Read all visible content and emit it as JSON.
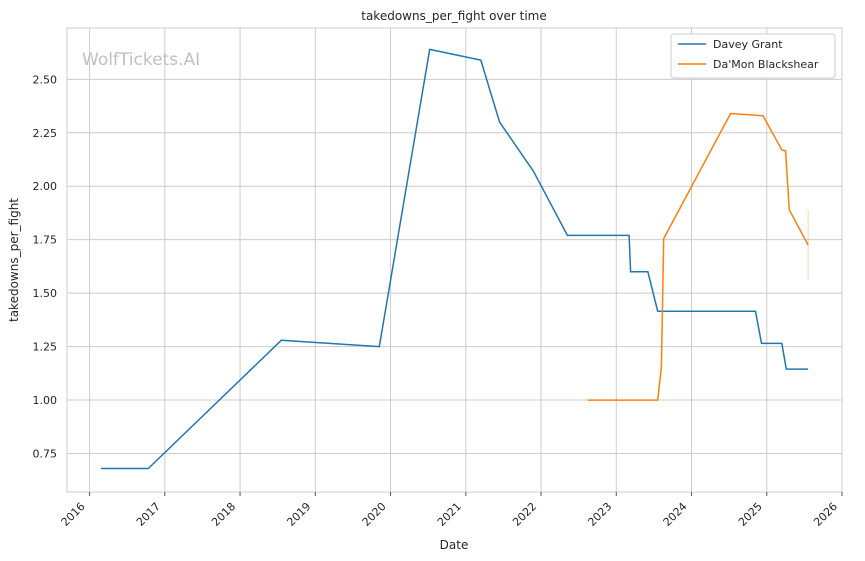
{
  "chart_data": {
    "type": "line",
    "title": "takedowns_per_fight over time",
    "xlabel": "Date",
    "ylabel": "takedowns_per_fight",
    "watermark": "WolfTickets.AI",
    "xlim": [
      2015.7,
      2026.0
    ],
    "ylim": [
      0.57,
      2.74
    ],
    "x_ticks": [
      2016,
      2017,
      2018,
      2019,
      2020,
      2021,
      2022,
      2023,
      2024,
      2025,
      2026
    ],
    "y_ticks": [
      0.75,
      1.0,
      1.25,
      1.5,
      1.75,
      2.0,
      2.25,
      2.5
    ],
    "y_tick_labels": [
      "0.75",
      "1.00",
      "1.25",
      "1.50",
      "1.75",
      "2.00",
      "2.25",
      "2.50"
    ],
    "grid": true,
    "legend_position": "top-right",
    "series": [
      {
        "name": "Davey Grant",
        "color": "#1f77b4",
        "points": [
          [
            2016.15,
            0.68
          ],
          [
            2016.78,
            0.68
          ],
          [
            2018.55,
            1.28
          ],
          [
            2019.85,
            1.25
          ],
          [
            2020.52,
            2.64
          ],
          [
            2021.2,
            2.59
          ],
          [
            2021.45,
            2.3
          ],
          [
            2021.9,
            2.07
          ],
          [
            2022.35,
            1.77
          ],
          [
            2023.17,
            1.77
          ],
          [
            2023.19,
            1.6
          ],
          [
            2023.42,
            1.6
          ],
          [
            2023.55,
            1.415
          ],
          [
            2024.85,
            1.415
          ],
          [
            2024.93,
            1.265
          ],
          [
            2025.2,
            1.265
          ],
          [
            2025.26,
            1.145
          ],
          [
            2025.55,
            1.145
          ]
        ]
      },
      {
        "name": "Da'Mon Blackshear",
        "color": "#ff7f0e",
        "points": [
          [
            2022.62,
            1.0
          ],
          [
            2023.55,
            1.0
          ],
          [
            2023.6,
            1.155
          ],
          [
            2023.63,
            1.755
          ],
          [
            2024.52,
            2.34
          ],
          [
            2024.95,
            2.33
          ],
          [
            2025.2,
            2.17
          ],
          [
            2025.25,
            2.165
          ],
          [
            2025.3,
            1.89
          ],
          [
            2025.55,
            1.725
          ]
        ],
        "error_bar": {
          "x": 2025.55,
          "low": 1.56,
          "high": 1.89
        }
      }
    ]
  }
}
